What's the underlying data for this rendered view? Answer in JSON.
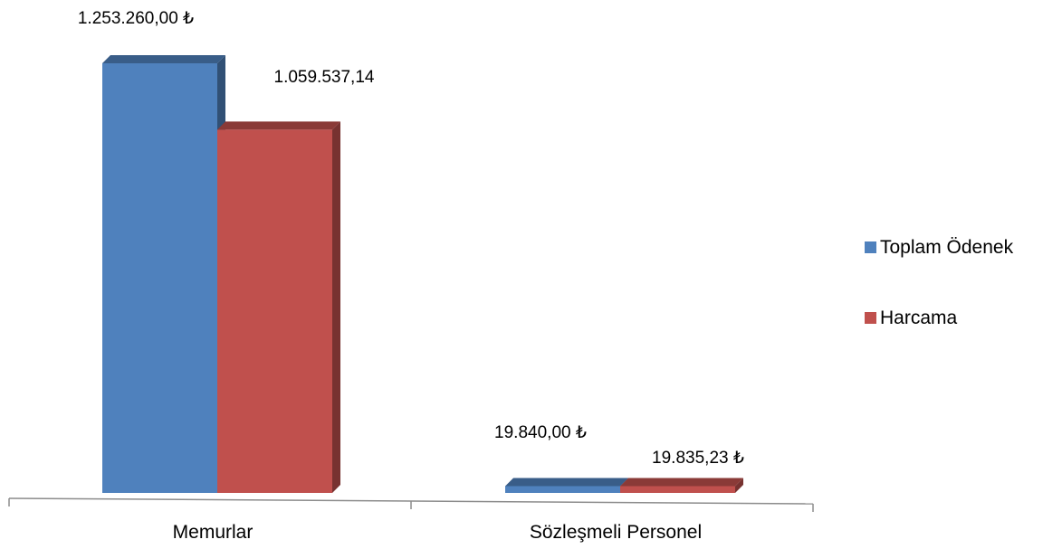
{
  "chart_data": {
    "type": "bar",
    "categories": [
      "Memurlar",
      "Sözleşmeli Personel"
    ],
    "series": [
      {
        "name": "Toplam Ödenek",
        "values": [
          1253260.0,
          19840.0
        ],
        "labels": [
          "1.253.260,00 ₺",
          "19.840,00 ₺"
        ],
        "color": "#4F81BD"
      },
      {
        "name": "Harcama",
        "values": [
          1059537.14,
          19835.23
        ],
        "labels": [
          "1.059.537,14",
          "19.835,23 ₺"
        ],
        "color": "#C0504D"
      }
    ],
    "legend_position": "right",
    "grid": false,
    "ylim": [
      0,
      1253260
    ]
  }
}
